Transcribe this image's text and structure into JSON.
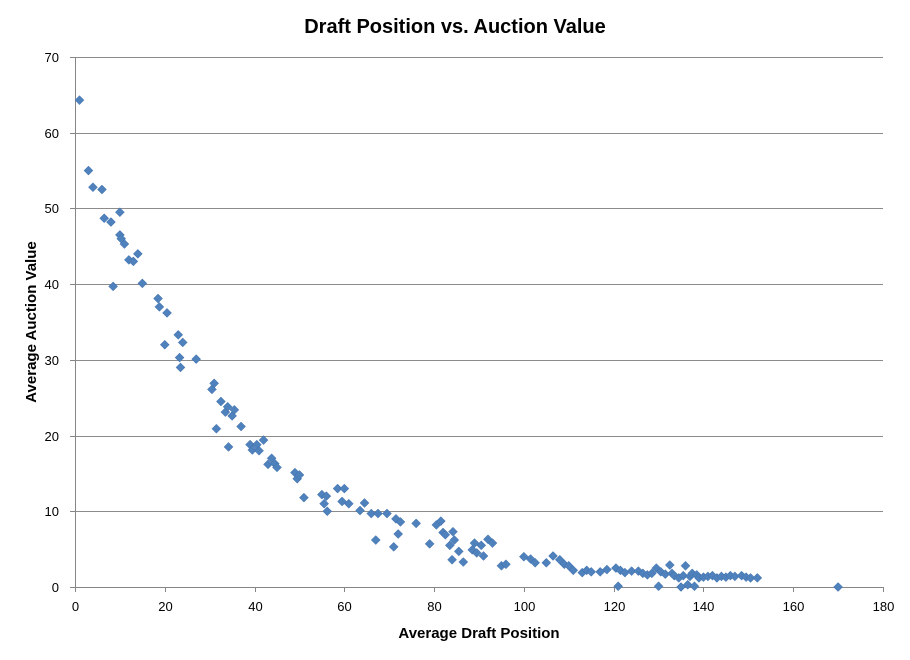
{
  "chart_data": {
    "type": "scatter",
    "title": "Draft Position vs. Auction Value",
    "xlabel": "Average Draft Position",
    "ylabel": "Average Auction Value",
    "xlim": [
      0,
      180
    ],
    "ylim": [
      0,
      70
    ],
    "xticks": [
      0,
      20,
      40,
      60,
      80,
      100,
      120,
      140,
      160,
      180
    ],
    "yticks": [
      0,
      10,
      20,
      30,
      40,
      50,
      60,
      70
    ],
    "grid": "horizontal",
    "legend": "none",
    "marker": "diamond",
    "color": "#4f81bd",
    "series": [
      {
        "points": [
          [
            1,
            64.3
          ],
          [
            3,
            55
          ],
          [
            4,
            52.8
          ],
          [
            6,
            52.5
          ],
          [
            6.5,
            48.7
          ],
          [
            8,
            48.2
          ],
          [
            8.5,
            39.7
          ],
          [
            10,
            49.5
          ],
          [
            10,
            46.5
          ],
          [
            10.3,
            46
          ],
          [
            11,
            45.3
          ],
          [
            12,
            43.2
          ],
          [
            13,
            43
          ],
          [
            14,
            44
          ],
          [
            15,
            40.1
          ],
          [
            18.5,
            38.1
          ],
          [
            18.8,
            37
          ],
          [
            20,
            32
          ],
          [
            20.5,
            36.2
          ],
          [
            23,
            33.3
          ],
          [
            23.3,
            30.3
          ],
          [
            23.5,
            29
          ],
          [
            24,
            32.3
          ],
          [
            27,
            30.1
          ],
          [
            30.5,
            26.1
          ],
          [
            31,
            26.9
          ],
          [
            31.5,
            20.9
          ],
          [
            32.5,
            24.5
          ],
          [
            33.5,
            23.1
          ],
          [
            34,
            23.8
          ],
          [
            34.2,
            18.5
          ],
          [
            35,
            22.6
          ],
          [
            35.5,
            23.4
          ],
          [
            37,
            21.2
          ],
          [
            39,
            18.8
          ],
          [
            39.5,
            18.1
          ],
          [
            40.5,
            18.8
          ],
          [
            41,
            18
          ],
          [
            42,
            19.4
          ],
          [
            43,
            16.2
          ],
          [
            43.8,
            17
          ],
          [
            44.5,
            16.3
          ],
          [
            45,
            15.8
          ],
          [
            49,
            15.1
          ],
          [
            49.5,
            14.3
          ],
          [
            50,
            14.8
          ],
          [
            51,
            11.8
          ],
          [
            55,
            12.2
          ],
          [
            55.5,
            11
          ],
          [
            56,
            12
          ],
          [
            56.2,
            10
          ],
          [
            58.5,
            13
          ],
          [
            59.5,
            11.3
          ],
          [
            60,
            13
          ],
          [
            61,
            11
          ],
          [
            63.5,
            10.1
          ],
          [
            64.5,
            11.1
          ],
          [
            66,
            9.7
          ],
          [
            67,
            6.2
          ],
          [
            67.5,
            9.7
          ],
          [
            69.5,
            9.7
          ],
          [
            71,
            5.3
          ],
          [
            71.5,
            9
          ],
          [
            72.5,
            8.6
          ],
          [
            72,
            7
          ],
          [
            76,
            8.4
          ],
          [
            79,
            5.7
          ],
          [
            80.5,
            8.2
          ],
          [
            81.5,
            8.7
          ],
          [
            82,
            7.2
          ],
          [
            82.5,
            6.9
          ],
          [
            83.5,
            5.5
          ],
          [
            84,
            3.6
          ],
          [
            84.2,
            7.3
          ],
          [
            84.5,
            6.2
          ],
          [
            85.5,
            4.7
          ],
          [
            86.5,
            3.3
          ],
          [
            88.5,
            4.9
          ],
          [
            89,
            5.8
          ],
          [
            89.5,
            4.5
          ],
          [
            90.5,
            5.5
          ],
          [
            91,
            4.1
          ],
          [
            92,
            6.3
          ],
          [
            93,
            5.8
          ],
          [
            95,
            2.8
          ],
          [
            96,
            3
          ],
          [
            100,
            4
          ],
          [
            101.5,
            3.7
          ],
          [
            102.5,
            3.2
          ],
          [
            105,
            3.2
          ],
          [
            106.5,
            4.1
          ],
          [
            108,
            3.6
          ],
          [
            109,
            3
          ],
          [
            110,
            2.8
          ],
          [
            111,
            2.2
          ],
          [
            113,
            1.9
          ],
          [
            114,
            2.2
          ],
          [
            115,
            2
          ],
          [
            117,
            2
          ],
          [
            118.5,
            2.3
          ],
          [
            120.5,
            2.5
          ],
          [
            121,
            0.1
          ],
          [
            121.5,
            2.2
          ],
          [
            122.5,
            1.9
          ],
          [
            124,
            2.1
          ],
          [
            125.5,
            2.1
          ],
          [
            126.5,
            1.8
          ],
          [
            127.5,
            1.6
          ],
          [
            128.5,
            1.8
          ],
          [
            129.5,
            2.5
          ],
          [
            130,
            0.1
          ],
          [
            130.5,
            2
          ],
          [
            131.5,
            1.7
          ],
          [
            132.5,
            2.9
          ],
          [
            133,
            1.8
          ],
          [
            133.5,
            1.5
          ],
          [
            134.5,
            1.2
          ],
          [
            135,
            0
          ],
          [
            135.5,
            1.5
          ],
          [
            136,
            2.8
          ],
          [
            136.5,
            0.3
          ],
          [
            137,
            1.4
          ],
          [
            137.5,
            1.8
          ],
          [
            138,
            0.1
          ],
          [
            138.5,
            1.6
          ],
          [
            139,
            1.2
          ],
          [
            140,
            1.3
          ],
          [
            141,
            1.4
          ],
          [
            142,
            1.5
          ],
          [
            143,
            1.2
          ],
          [
            144,
            1.4
          ],
          [
            145,
            1.3
          ],
          [
            146,
            1.5
          ],
          [
            147,
            1.4
          ],
          [
            148.5,
            1.5
          ],
          [
            149.5,
            1.3
          ],
          [
            150.5,
            1.2
          ],
          [
            152,
            1.2
          ],
          [
            170,
            0
          ]
        ]
      }
    ]
  }
}
